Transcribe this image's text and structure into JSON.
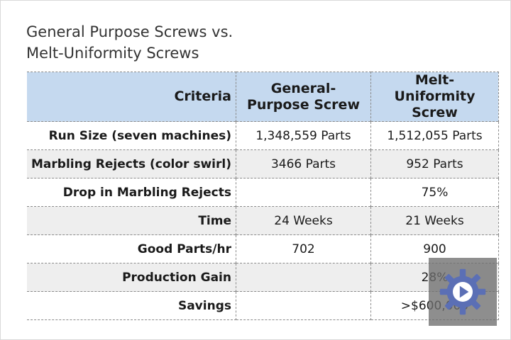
{
  "title": {
    "line1": "General Purpose Screws vs.",
    "line2": "Melt-Uniformity Screws"
  },
  "table": {
    "headers": [
      "Criteria",
      "General-Purpose Screw",
      "Melt-Uniformity Screw"
    ],
    "rows": [
      {
        "criteria": "Run Size (seven machines)",
        "general": "1,348,559 Parts",
        "melt": "1,512,055 Parts"
      },
      {
        "criteria": "Marbling Rejects (color swirl)",
        "general": "3466 Parts",
        "melt": "952 Parts"
      },
      {
        "criteria": "Drop in Marbling Rejects",
        "general": "",
        "melt": "75%"
      },
      {
        "criteria": "Time",
        "general": "24 Weeks",
        "melt": "21 Weeks"
      },
      {
        "criteria": "Good Parts/hr",
        "general": "702",
        "melt": "900"
      },
      {
        "criteria": "Production Gain",
        "general": "",
        "melt": "28%"
      },
      {
        "criteria": "Savings",
        "general": "",
        "melt": ">$600,000"
      }
    ]
  },
  "overlay": {
    "icon": "gear-play-icon",
    "color": "#5b6fb5"
  }
}
